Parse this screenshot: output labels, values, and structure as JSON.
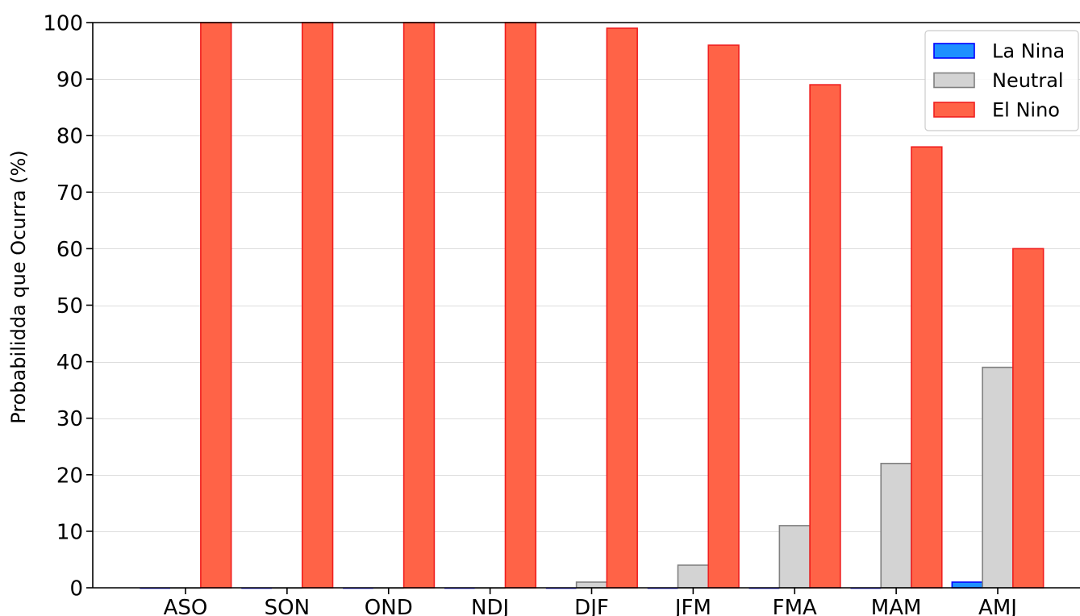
{
  "chart_data": {
    "type": "bar",
    "ylabel": "Probabilidda que Ocurra (%)",
    "categories": [
      "ASO",
      "SON",
      "OND",
      "NDJ",
      "DJF",
      "JFM",
      "FMA",
      "MAM",
      "AMJ"
    ],
    "series": [
      {
        "name": "La Nina",
        "values": [
          0,
          0,
          0,
          0,
          0,
          0,
          0,
          0,
          1
        ],
        "color": "#1E90FF",
        "edge_color": "#0000FF"
      },
      {
        "name": "Neutral",
        "values": [
          0,
          0,
          0,
          0,
          1,
          4,
          11,
          22,
          39
        ],
        "color": "#D3D3D3",
        "edge_color": "#808080"
      },
      {
        "name": "El Nino",
        "values": [
          100,
          100,
          100,
          100,
          99,
          96,
          89,
          78,
          60
        ],
        "color": "#FF6347",
        "edge_color": "#F01E1E"
      }
    ],
    "ylim": [
      0,
      100
    ],
    "yticks": [
      0,
      10,
      20,
      30,
      40,
      50,
      60,
      70,
      80,
      90,
      100
    ],
    "grid": true,
    "legend": "top-right"
  }
}
